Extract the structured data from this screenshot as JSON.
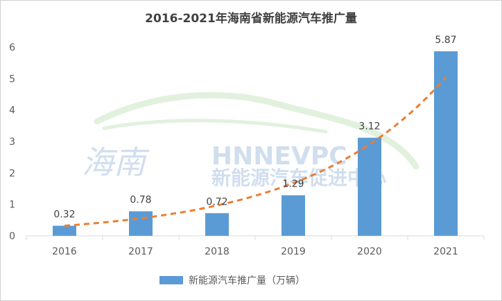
{
  "chart_data": {
    "type": "bar",
    "title": "2016-2021年海南省新能源汽车推广量",
    "categories": [
      "2016",
      "2017",
      "2018",
      "2019",
      "2020",
      "2021"
    ],
    "series": [
      {
        "name": "新能源汽车推广量（万辆）",
        "values": [
          0.32,
          0.78,
          0.72,
          1.29,
          3.12,
          5.87
        ],
        "color": "#5b9bd5"
      }
    ],
    "data_labels": [
      "0.32",
      "0.78",
      "0.72",
      "1.29",
      "3.12",
      "5.87"
    ],
    "trendline": {
      "type": "exponential",
      "color": "#ed7d31",
      "style": "dashed"
    },
    "y_ticks": [
      "0",
      "1",
      "2",
      "3",
      "4",
      "5",
      "6"
    ],
    "ylim": [
      0,
      6
    ],
    "grid": false,
    "legend_position": "bottom",
    "watermark": {
      "text_cn_logo": "海南",
      "text_en": "HNNEVPC",
      "text_cn": "新能源汽车促进中心"
    }
  }
}
